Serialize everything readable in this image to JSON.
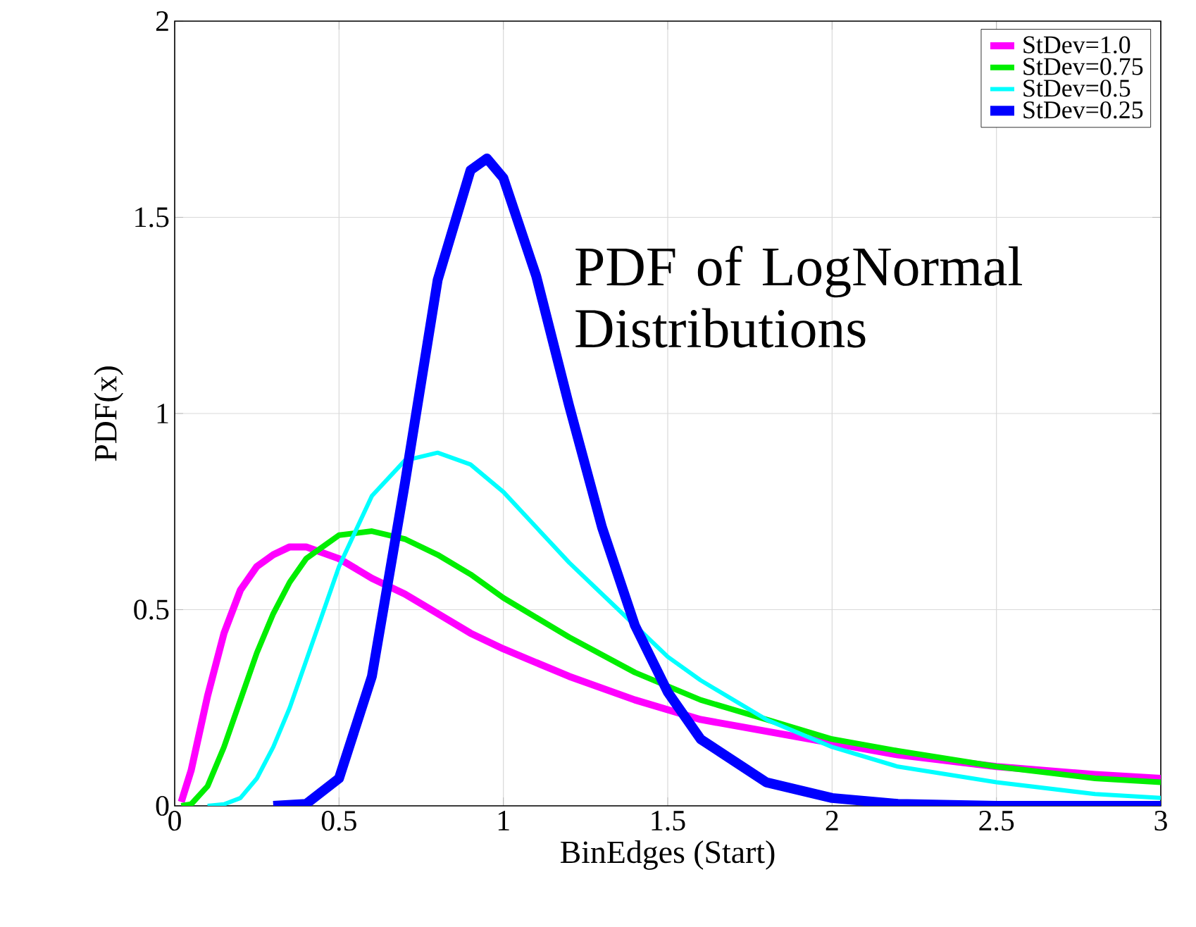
{
  "chart_data": {
    "type": "line",
    "xlabel": "BinEdges (Start)",
    "ylabel": "PDF(x)",
    "annotations": [
      "PDF of LogNormal Distributions"
    ],
    "xlim": [
      0,
      3
    ],
    "ylim": [
      0,
      2
    ],
    "xticks": [
      0,
      0.5,
      1,
      1.5,
      2,
      2.5,
      3
    ],
    "yticks": [
      0,
      0.5,
      1,
      1.5,
      2
    ],
    "grid": true,
    "legend": "top right",
    "line_style": "solid",
    "marker": "none",
    "series": [
      {
        "name": "StDev=1.0",
        "color": "#ff00ff",
        "x": [
          0.02,
          0.05,
          0.1,
          0.15,
          0.2,
          0.25,
          0.3,
          0.35,
          0.4,
          0.5,
          0.6,
          0.7,
          0.8,
          0.9,
          1.0,
          1.2,
          1.4,
          1.6,
          1.8,
          2.0,
          2.2,
          2.5,
          2.8,
          3.0
        ],
        "values": [
          0.01,
          0.09,
          0.28,
          0.44,
          0.55,
          0.61,
          0.64,
          0.66,
          0.66,
          0.63,
          0.58,
          0.54,
          0.49,
          0.44,
          0.4,
          0.33,
          0.27,
          0.22,
          0.19,
          0.16,
          0.13,
          0.1,
          0.08,
          0.07
        ]
      },
      {
        "name": "StDev=0.75",
        "color": "#00ee00",
        "x": [
          0.02,
          0.05,
          0.1,
          0.15,
          0.2,
          0.25,
          0.3,
          0.35,
          0.4,
          0.5,
          0.6,
          0.7,
          0.8,
          0.9,
          1.0,
          1.2,
          1.4,
          1.6,
          1.8,
          2.0,
          2.2,
          2.5,
          2.8,
          3.0
        ],
        "values": [
          0,
          0.004,
          0.05,
          0.15,
          0.27,
          0.39,
          0.49,
          0.57,
          0.63,
          0.69,
          0.7,
          0.68,
          0.64,
          0.59,
          0.53,
          0.43,
          0.34,
          0.27,
          0.22,
          0.17,
          0.14,
          0.1,
          0.07,
          0.06
        ]
      },
      {
        "name": "StDev=0.5",
        "color": "#00ffff",
        "x": [
          0.1,
          0.15,
          0.2,
          0.25,
          0.3,
          0.35,
          0.4,
          0.5,
          0.6,
          0.7,
          0.8,
          0.9,
          1.0,
          1.1,
          1.2,
          1.3,
          1.4,
          1.5,
          1.6,
          1.8,
          2.0,
          2.2,
          2.5,
          2.8,
          3.0
        ],
        "values": [
          0,
          0.004,
          0.02,
          0.07,
          0.15,
          0.25,
          0.37,
          0.61,
          0.79,
          0.88,
          0.9,
          0.87,
          0.8,
          0.71,
          0.62,
          0.54,
          0.46,
          0.38,
          0.32,
          0.22,
          0.15,
          0.1,
          0.06,
          0.03,
          0.02
        ]
      },
      {
        "name": "StDev=0.25",
        "color": "#0000ff",
        "x": [
          0.3,
          0.4,
          0.5,
          0.6,
          0.7,
          0.8,
          0.9,
          0.95,
          1.0,
          1.1,
          1.2,
          1.3,
          1.4,
          1.5,
          1.6,
          1.8,
          2.0,
          2.2,
          2.5,
          3.0
        ],
        "values": [
          0,
          0.005,
          0.07,
          0.33,
          0.82,
          1.34,
          1.62,
          1.65,
          1.6,
          1.35,
          1.02,
          0.71,
          0.46,
          0.29,
          0.17,
          0.06,
          0.02,
          0.005,
          0,
          0
        ]
      }
    ]
  }
}
